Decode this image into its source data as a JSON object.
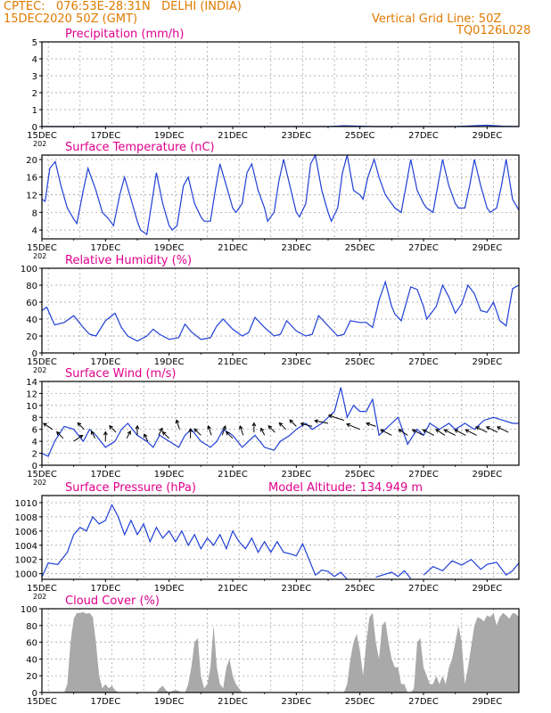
{
  "header": {
    "line1_left": "CPTEC:   076:53E-28:31N   DELHI (INDIA)",
    "line2_left": "15DEC2020 50Z (GMT)",
    "line1_right": "Vertical Grid Line: 50Z",
    "line2_right": "TQ0126L028"
  },
  "colors": {
    "header": "#e07a00",
    "panel_title": "#e0008c",
    "series": "#1f3fd6",
    "cloud": "#a9a9a9",
    "wind_arrow": "#000000"
  },
  "x_axis": {
    "start": "15DEC",
    "end": "30DEC",
    "tick_labels": [
      "15DEC",
      "17DEC",
      "19DEC",
      "21DEC",
      "23DEC",
      "25DEC",
      "27DEC",
      "29DEC"
    ],
    "tick_positions_days": [
      0,
      2,
      4,
      6,
      8,
      10,
      12,
      14
    ],
    "range_days": [
      0,
      15
    ],
    "year_fragment": "202"
  },
  "chart_data": [
    {
      "id": "precipitation",
      "type": "line",
      "title": "Precipitation (mm/h)",
      "ylim": [
        0,
        5
      ],
      "yticks": [
        0,
        1,
        2,
        3,
        4,
        5
      ],
      "grid": true,
      "x": [
        0,
        1,
        2,
        3,
        4,
        5,
        6,
        7,
        8,
        9,
        9.5,
        10,
        10.5,
        11,
        12,
        13,
        13.5,
        14,
        14.5,
        15
      ],
      "y": [
        0,
        0,
        0,
        0,
        0,
        0,
        0,
        0,
        0,
        0,
        0.05,
        0.02,
        0,
        0,
        0,
        0,
        0.04,
        0.08,
        0.02,
        0
      ]
    },
    {
      "id": "temperature",
      "type": "line",
      "title": "Surface Temperature (nC)",
      "ylim": [
        2,
        21
      ],
      "yticks": [
        4,
        8,
        12,
        16,
        20
      ],
      "grid": true,
      "x": [
        0.0,
        0.1,
        0.25,
        0.42,
        0.6,
        0.8,
        1.0,
        1.1,
        1.3,
        1.45,
        1.7,
        1.9,
        2.1,
        2.25,
        2.45,
        2.6,
        2.8,
        3.0,
        3.1,
        3.3,
        3.45,
        3.6,
        3.8,
        4.0,
        4.1,
        4.25,
        4.45,
        4.6,
        4.8,
        5.0,
        5.1,
        5.3,
        5.45,
        5.6,
        5.8,
        6.0,
        6.1,
        6.3,
        6.45,
        6.6,
        6.8,
        7.0,
        7.1,
        7.3,
        7.45,
        7.6,
        7.8,
        8.0,
        8.1,
        8.3,
        8.45,
        8.6,
        8.8,
        9.0,
        9.1,
        9.3,
        9.45,
        9.6,
        9.8,
        10.0,
        10.1,
        10.25,
        10.45,
        10.6,
        10.8,
        11.0,
        11.1,
        11.3,
        11.45,
        11.6,
        11.8,
        12.0,
        12.1,
        12.3,
        12.45,
        12.6,
        12.8,
        13.0,
        13.1,
        13.3,
        13.45,
        13.6,
        13.8,
        14.0,
        14.1,
        14.3,
        14.45,
        14.6,
        14.8,
        15.0
      ],
      "y": [
        11,
        10.5,
        18,
        19.5,
        14,
        9,
        6.5,
        5.5,
        13,
        18,
        13,
        8,
        6.5,
        5,
        12,
        16,
        11,
        6,
        4,
        3,
        10,
        17,
        10,
        5,
        4,
        5,
        14,
        16,
        10,
        7,
        6,
        6,
        13,
        19,
        14,
        9,
        8,
        10,
        17,
        19,
        13,
        9,
        6,
        8,
        15,
        20,
        14,
        8,
        7,
        10,
        19,
        21,
        13,
        8,
        6,
        9,
        17,
        21,
        13,
        12,
        11,
        16,
        20,
        16,
        12,
        10,
        9,
        8,
        14,
        20,
        13,
        10,
        9,
        8,
        14,
        20,
        14,
        10,
        9,
        9,
        14,
        20,
        14,
        9,
        8,
        9,
        14,
        20,
        11,
        8.5
      ]
    },
    {
      "id": "humidity",
      "type": "line",
      "title": "Relative Humidity (%)",
      "ylim": [
        0,
        100
      ],
      "yticks": [
        0,
        20,
        40,
        60,
        80,
        100
      ],
      "grid": true,
      "x": [
        0.0,
        0.15,
        0.4,
        0.7,
        1.0,
        1.3,
        1.5,
        1.7,
        2.0,
        2.3,
        2.5,
        2.7,
        3.0,
        3.3,
        3.5,
        3.7,
        4.0,
        4.3,
        4.5,
        4.7,
        5.0,
        5.3,
        5.5,
        5.7,
        6.0,
        6.3,
        6.5,
        6.7,
        7.0,
        7.3,
        7.5,
        7.7,
        8.0,
        8.3,
        8.5,
        8.7,
        9.0,
        9.3,
        9.5,
        9.7,
        10.0,
        10.2,
        10.4,
        10.6,
        10.8,
        11.0,
        11.1,
        11.3,
        11.6,
        11.8,
        12.0,
        12.1,
        12.4,
        12.6,
        12.8,
        13.0,
        13.2,
        13.4,
        13.6,
        13.8,
        14.0,
        14.2,
        14.4,
        14.6,
        14.8,
        15.0
      ],
      "y": [
        50,
        54,
        33,
        36,
        44,
        30,
        22,
        20,
        38,
        47,
        30,
        20,
        14,
        20,
        28,
        22,
        16,
        18,
        34,
        25,
        16,
        18,
        32,
        40,
        28,
        20,
        24,
        42,
        30,
        20,
        22,
        38,
        26,
        20,
        22,
        44,
        32,
        20,
        22,
        38,
        36,
        36,
        30,
        62,
        84,
        55,
        46,
        38,
        78,
        75,
        55,
        40,
        55,
        80,
        66,
        47,
        58,
        80,
        70,
        50,
        48,
        60,
        38,
        32,
        76,
        80
      ]
    },
    {
      "id": "wind",
      "type": "line",
      "title": "Surface Wind (m/s)",
      "ylim": [
        0,
        14
      ],
      "yticks": [
        0,
        2,
        4,
        6,
        8,
        10,
        12,
        14
      ],
      "grid": true,
      "x": [
        0.0,
        0.2,
        0.4,
        0.7,
        1.0,
        1.3,
        1.5,
        1.7,
        2.0,
        2.3,
        2.5,
        2.7,
        3.0,
        3.3,
        3.5,
        3.7,
        4.0,
        4.3,
        4.5,
        4.7,
        5.0,
        5.3,
        5.5,
        5.7,
        6.0,
        6.3,
        6.5,
        6.7,
        7.0,
        7.3,
        7.5,
        7.8,
        8.0,
        8.3,
        8.5,
        8.8,
        9.0,
        9.2,
        9.4,
        9.6,
        9.8,
        10.0,
        10.2,
        10.4,
        10.6,
        10.8,
        11.0,
        11.2,
        11.5,
        11.8,
        12.0,
        12.2,
        12.5,
        12.8,
        13.0,
        13.3,
        13.6,
        13.9,
        14.2,
        14.5,
        14.8,
        15.0
      ],
      "y": [
        2,
        1.5,
        4,
        6.5,
        6,
        4,
        6,
        5,
        3,
        4,
        6,
        7,
        5,
        4,
        3,
        5,
        4,
        3,
        5,
        6,
        4,
        3,
        4,
        6,
        5,
        3,
        4,
        5,
        3,
        2.5,
        4,
        5,
        6,
        7,
        6,
        7,
        8,
        9,
        13,
        8,
        10,
        9,
        9,
        11,
        5,
        6,
        7,
        8,
        3.5,
        6,
        5,
        7,
        6,
        7,
        6,
        7,
        6,
        7.5,
        8,
        7.5,
        7,
        7
      ]
    },
    {
      "id": "pressure",
      "type": "line",
      "title": "Surface Pressure (hPa)",
      "annotation": "Model Altitude: 134.949 m",
      "ylim": [
        999.2,
        1011
      ],
      "yticks": [
        1000,
        1002,
        1004,
        1006,
        1008,
        1010
      ],
      "grid": true,
      "x": [
        0.0,
        0.2,
        0.5,
        0.8,
        1.0,
        1.2,
        1.4,
        1.6,
        1.8,
        2.0,
        2.2,
        2.4,
        2.6,
        2.8,
        3.0,
        3.2,
        3.4,
        3.6,
        3.8,
        4.0,
        4.2,
        4.4,
        4.6,
        4.8,
        5.0,
        5.2,
        5.4,
        5.6,
        5.8,
        6.0,
        6.2,
        6.4,
        6.6,
        6.8,
        7.0,
        7.2,
        7.4,
        7.6,
        7.8,
        8.0,
        8.2,
        8.4,
        8.6,
        8.8,
        9.0,
        9.2,
        9.4,
        9.6
      ],
      "y": [
        999.5,
        1001.5,
        1001.3,
        1003,
        1005.5,
        1006.5,
        1006,
        1008,
        1007,
        1007.5,
        1009.7,
        1008,
        1005.5,
        1007.5,
        1005.5,
        1007,
        1004.5,
        1006.5,
        1005,
        1006,
        1004.5,
        1006,
        1004,
        1005.5,
        1003.5,
        1005,
        1004,
        1005.5,
        1003.5,
        1006,
        1004.5,
        1003.5,
        1005,
        1003,
        1004.5,
        1003,
        1004.5,
        1003,
        1002.8,
        1002.5,
        1004.2,
        1002,
        999.8,
        1000.5,
        1000.3,
        999.6,
        1000.2,
        999.2
      ],
      "segments": [
        {
          "x": [
            10.5,
            11.0,
            11.2,
            11.4,
            11.6
          ],
          "y": [
            999.5,
            1000.2,
            999.6,
            1000.4,
            999.3
          ]
        },
        {
          "x": [
            12.0,
            12.3,
            12.6,
            12.9,
            13.2,
            13.5,
            13.8,
            14.0,
            14.3,
            14.6,
            14.8,
            15.0
          ],
          "y": [
            999.8,
            1001,
            1000.4,
            1001.8,
            1001.2,
            1002,
            1000.6,
            1001.3,
            1001.6,
            999.8,
            1000.4,
            1001.5
          ]
        }
      ]
    },
    {
      "id": "cloud",
      "type": "area",
      "title": "Cloud Cover (%)",
      "ylim": [
        0,
        100
      ],
      "yticks": [
        0,
        20,
        40,
        60,
        80,
        100
      ],
      "grid": true,
      "x": [
        0,
        0.7,
        0.8,
        0.9,
        1.0,
        1.1,
        1.2,
        1.3,
        1.4,
        1.5,
        1.6,
        1.7,
        1.8,
        1.9,
        2.0,
        2.1,
        2.2,
        2.3,
        2.4,
        2.5,
        3.6,
        3.7,
        3.8,
        3.9,
        4.0,
        4.1,
        4.2,
        4.3,
        4.4,
        4.5,
        4.6,
        4.7,
        4.8,
        4.9,
        5.0,
        5.1,
        5.2,
        5.3,
        5.4,
        5.5,
        5.6,
        5.7,
        5.8,
        5.9,
        6.0,
        6.1,
        6.2,
        6.3,
        9.5,
        9.6,
        9.7,
        9.8,
        9.9,
        10.0,
        10.1,
        10.2,
        10.3,
        10.4,
        10.5,
        10.6,
        10.7,
        10.8,
        10.9,
        11.0,
        11.1,
        11.2,
        11.3,
        11.4,
        11.5,
        11.6,
        11.7,
        11.8,
        11.9,
        12.0,
        12.1,
        12.2,
        12.3,
        12.4,
        12.5,
        12.6,
        12.7,
        12.8,
        12.9,
        13.0,
        13.1,
        13.2,
        13.3,
        13.4,
        13.5,
        13.6,
        13.7,
        13.8,
        13.9,
        14.0,
        14.1,
        14.2,
        14.3,
        14.4,
        14.5,
        14.6,
        14.7,
        14.8,
        14.9,
        15.0
      ],
      "y": [
        0,
        0,
        10,
        60,
        88,
        95,
        95,
        96,
        94,
        95,
        90,
        60,
        20,
        5,
        10,
        5,
        8,
        3,
        0,
        0,
        0,
        5,
        8,
        3,
        0,
        2,
        3,
        2,
        0,
        0,
        10,
        30,
        60,
        65,
        20,
        5,
        10,
        30,
        80,
        30,
        10,
        5,
        30,
        40,
        20,
        10,
        5,
        0,
        0,
        10,
        40,
        60,
        70,
        50,
        20,
        60,
        90,
        95,
        60,
        40,
        80,
        85,
        60,
        40,
        30,
        30,
        10,
        10,
        0,
        0,
        5,
        60,
        65,
        30,
        20,
        10,
        10,
        20,
        10,
        20,
        10,
        30,
        40,
        60,
        80,
        60,
        10,
        30,
        55,
        80,
        90,
        88,
        85,
        92,
        90,
        95,
        80,
        90,
        95,
        92,
        88,
        95,
        94,
        90
      ]
    }
  ],
  "wind_arrows": {
    "x_days": [
      0.33,
      0.67,
      1.0,
      1.33,
      1.67,
      2.0,
      2.33,
      2.67,
      3.0,
      3.33,
      3.67,
      4.0,
      4.33,
      4.67,
      5.0,
      5.33,
      5.67,
      6.0,
      6.33,
      6.67,
      7.0,
      7.33,
      7.67,
      8.0,
      8.5,
      9.0,
      9.5,
      10.0,
      10.5,
      11.0,
      11.5,
      12.0,
      12.33,
      12.67,
      13.0,
      13.33,
      13.67,
      14.0,
      14.33,
      14.67
    ],
    "speed": [
      6,
      4.5,
      4,
      6,
      4.5,
      4,
      5.5,
      4.5,
      5,
      4,
      5,
      4.5,
      6,
      4.5,
      5,
      5,
      5,
      4.5,
      5,
      5.5,
      5,
      5.5,
      6,
      6.5,
      6.5,
      7,
      7.5,
      6,
      6.5,
      5,
      5,
      5,
      5,
      5,
      5,
      5,
      5,
      5.5,
      5.5,
      5.5
    ],
    "u": [
      -3,
      -2,
      3,
      -2,
      -1,
      0,
      -2,
      1,
      0,
      -1,
      1,
      -2,
      -1,
      0,
      -2,
      -1,
      1,
      -2,
      -1,
      0,
      -1,
      -2,
      -2,
      -2,
      -4,
      -5,
      -6,
      -5,
      -3,
      -4,
      -3,
      -4,
      -4,
      -3,
      -4,
      -4,
      -4,
      -4,
      -4,
      -4
    ],
    "v": [
      2,
      2,
      2,
      2,
      2,
      3,
      2,
      2,
      3,
      2,
      2,
      2,
      3,
      3,
      2,
      3,
      3,
      2,
      3,
      3,
      2,
      2,
      2,
      2,
      1,
      1,
      2,
      2,
      1,
      2,
      2,
      2,
      2,
      2,
      2,
      2,
      2,
      2,
      2,
      2
    ]
  }
}
